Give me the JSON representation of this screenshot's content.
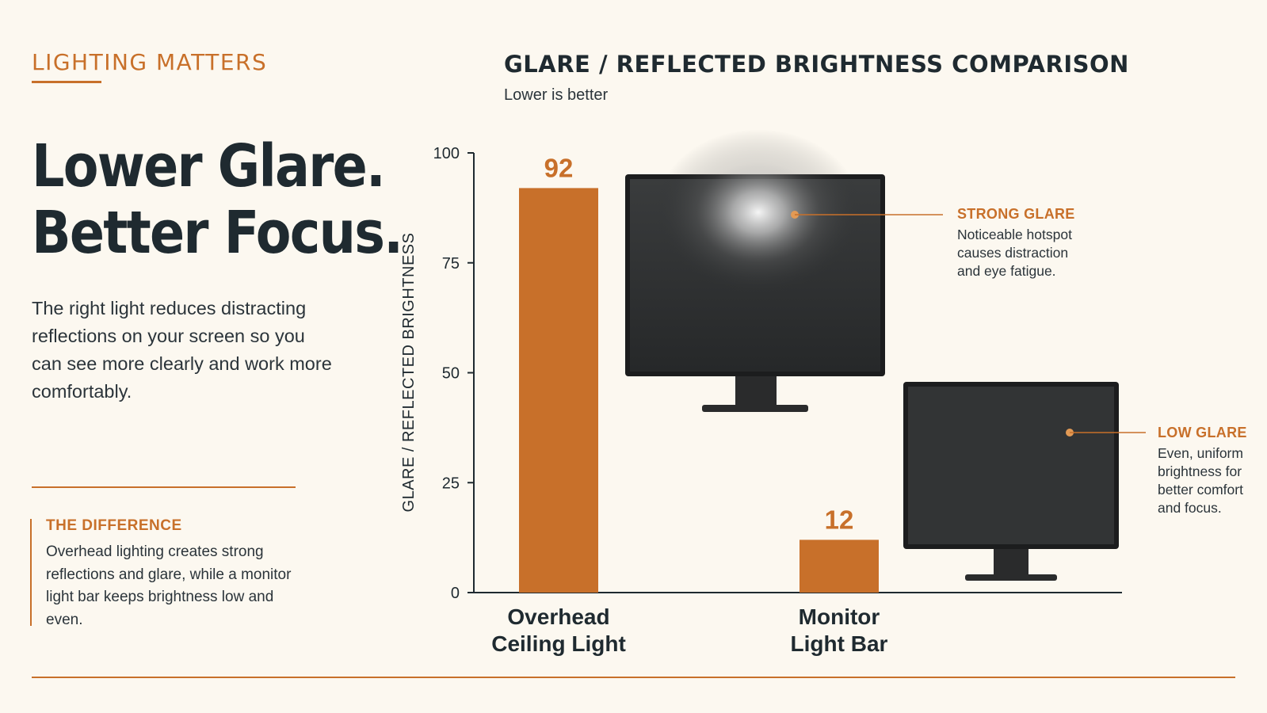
{
  "eyebrow": "LIGHTING MATTERS",
  "headline": {
    "line1": "Lower Glare.",
    "line2": "Better Focus."
  },
  "intro": "The right light reduces distracting reflections on your screen so you can see more clearly and work more comfortably.",
  "callout": {
    "title": "THE DIFFERENCE",
    "text": "Overhead lighting creates strong reflections and glare, while a monitor light bar keeps brightness low and even."
  },
  "annotations": {
    "strong": {
      "title": "STRONG GLARE",
      "text": "Noticeable hotspot\ncauses distraction\nand eye fatigue."
    },
    "low": {
      "title": "LOW GLARE",
      "text": "Even, uniform\nbrightness for\nbetter comfort\nand focus."
    }
  },
  "colors": {
    "accent": "#c8702a",
    "text": "#1f2a30",
    "background": "#fcf8f0",
    "screen": "#2b2d2e"
  },
  "icons": [
    "monitor-glare-icon",
    "monitor-even-icon"
  ],
  "chart_data": {
    "type": "bar",
    "title": "GLARE / REFLECTED BRIGHTNESS COMPARISON",
    "subtitle": "Lower is better",
    "ylabel": "GLARE / REFLECTED BRIGHTNESS",
    "xlabel": "",
    "ylim": [
      0,
      100
    ],
    "yticks": [
      0,
      25,
      50,
      75,
      100
    ],
    "grid": false,
    "categories": [
      {
        "line1": "Overhead",
        "line2": "Ceiling Light"
      },
      {
        "line1": "Monitor",
        "line2": "Light Bar"
      }
    ],
    "values": [
      92,
      12
    ],
    "value_labels": [
      "92",
      "12"
    ]
  }
}
